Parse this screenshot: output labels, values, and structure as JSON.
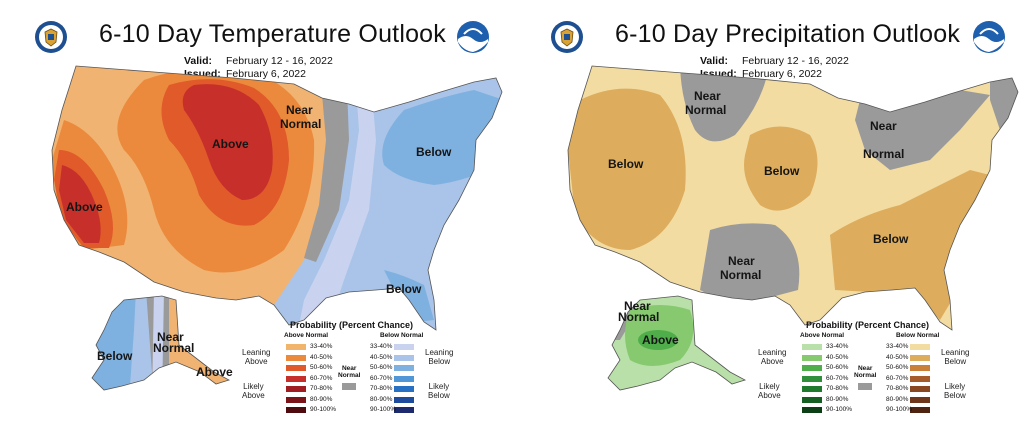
{
  "temperature": {
    "title": "6-10 Day Temperature Outlook",
    "valid_label": "Valid:",
    "valid_value": "February 12 - 16, 2022",
    "issued_label": "Issued:",
    "issued_value": "February 6, 2022",
    "labels": {
      "above_main": "Above",
      "above_west": "Above",
      "near_normal_1": "Near",
      "near_normal_2": "Normal",
      "below_ne": "Below",
      "below_fl": "Below",
      "below_ak": "Below",
      "near_ak_1": "Near",
      "near_ak_2": "Normal",
      "above_ak": "Above"
    },
    "legend": {
      "title": "Probability (Percent Chance)",
      "left_head": "Above Normal",
      "right_head": "Below Normal",
      "near_head_1": "Near",
      "near_head_2": "Normal",
      "left_values": [
        "33-40%",
        "40-50%",
        "50-60%",
        "60-70%",
        "70-80%",
        "80-90%",
        "90-100%"
      ],
      "right_values": [
        "33-40%",
        "40-50%",
        "50-60%",
        "60-70%",
        "70-80%",
        "80-90%",
        "90-100%"
      ],
      "left_colors": [
        "#f2b36b",
        "#eb8a3c",
        "#e05a2a",
        "#c7302a",
        "#a01e22",
        "#7a1419",
        "#4e0b0f"
      ],
      "right_colors": [
        "#c9d3ef",
        "#a9c4e8",
        "#7fb1e0",
        "#4f97d6",
        "#2871c2",
        "#1e4b9c",
        "#1d2a6e"
      ],
      "leaning_left_1": "Leaning",
      "leaning_left_2": "Above",
      "likely_left_1": "Likely",
      "likely_left_2": "Above",
      "leaning_right_1": "Leaning",
      "leaning_right_2": "Below",
      "likely_right_1": "Likely",
      "likely_right_2": "Below"
    }
  },
  "precipitation": {
    "title": "6-10 Day Precipitation Outlook",
    "valid_label": "Valid:",
    "valid_value": "February 12 - 16, 2022",
    "issued_label": "Issued:",
    "issued_value": "February 6, 2022",
    "labels": {
      "near_north_1": "Near",
      "near_north_2": "Normal",
      "near_lakes_1": "Near",
      "near_lakes_2": "Normal",
      "below_west": "Below",
      "below_central": "Below",
      "below_se": "Below",
      "near_tx_1": "Near",
      "near_tx_2": "Normal",
      "near_ak_1": "Near",
      "near_ak_2": "Normal",
      "above_ak": "Above"
    },
    "legend": {
      "title": "Probability (Percent Chance)",
      "left_head": "Above Normal",
      "right_head": "Below Normal",
      "near_head_1": "Near",
      "near_head_2": "Normal",
      "left_values": [
        "33-40%",
        "40-50%",
        "50-60%",
        "60-70%",
        "70-80%",
        "80-90%",
        "90-100%"
      ],
      "right_values": [
        "33-40%",
        "40-50%",
        "50-60%",
        "60-70%",
        "70-80%",
        "80-90%",
        "90-100%"
      ],
      "left_colors": [
        "#b9e0a8",
        "#86c96f",
        "#4fae4a",
        "#2f8f3a",
        "#1f7a2e",
        "#155f23",
        "#0c3f16"
      ],
      "right_colors": [
        "#f3dca2",
        "#ddad5d",
        "#c9813a",
        "#a65d2a",
        "#8a4822",
        "#6e361a",
        "#4e2411"
      ],
      "leaning_left_1": "Leaning",
      "leaning_left_2": "Above",
      "likely_left_1": "Likely",
      "likely_left_2": "Above",
      "leaning_right_1": "Leaning",
      "leaning_right_2": "Below",
      "likely_right_1": "Likely",
      "likely_right_2": "Below"
    }
  }
}
